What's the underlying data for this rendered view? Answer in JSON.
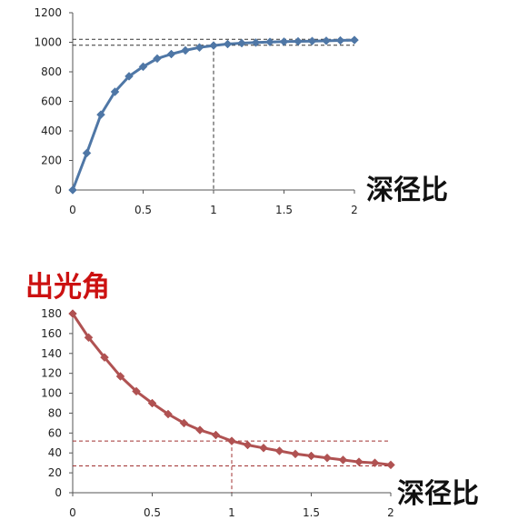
{
  "chart_data": [
    {
      "type": "line",
      "title": "",
      "xlabel": "深径比",
      "ylabel": "",
      "xlim": [
        0,
        2
      ],
      "ylim": [
        0,
        1200
      ],
      "xticks": [
        "0",
        "0.5",
        "1",
        "1.5",
        "2"
      ],
      "yticks": [
        "0",
        "200",
        "400",
        "600",
        "800",
        "1000",
        "1200"
      ],
      "grid": false,
      "color": "#4f77a6",
      "series": [
        {
          "x": [
            0,
            0.1,
            0.2,
            0.3,
            0.4,
            0.5,
            0.6,
            0.7,
            0.8,
            0.9,
            1.0,
            1.1,
            1.2,
            1.3,
            1.4,
            1.5,
            1.6,
            1.7,
            1.8,
            1.9,
            2.0
          ],
          "y": [
            0,
            250,
            510,
            665,
            770,
            835,
            890,
            920,
            945,
            965,
            978,
            988,
            994,
            998,
            1002,
            1004,
            1006,
            1008,
            1010,
            1012,
            1015
          ]
        }
      ],
      "reference_lines": [
        {
          "y": 1020
        },
        {
          "y": 980,
          "x": 1.0
        }
      ]
    },
    {
      "type": "line",
      "title": "出光角",
      "xlabel": "深径比",
      "ylabel": "",
      "xlim": [
        0,
        2
      ],
      "ylim": [
        0,
        180
      ],
      "xticks": [
        "0",
        "0.5",
        "1",
        "1.5",
        "2"
      ],
      "yticks": [
        "0",
        "20",
        "40",
        "60",
        "80",
        "100",
        "120",
        "140",
        "160",
        "180"
      ],
      "grid": false,
      "color": "#b05252",
      "title_color": "#cc1111",
      "series": [
        {
          "x": [
            0,
            0.1,
            0.2,
            0.3,
            0.4,
            0.5,
            0.6,
            0.7,
            0.8,
            0.9,
            1.0,
            1.1,
            1.2,
            1.3,
            1.4,
            1.5,
            1.6,
            1.7,
            1.8,
            1.9,
            2.0
          ],
          "y": [
            180,
            156,
            136,
            117,
            102,
            90,
            79,
            70,
            63,
            58,
            52,
            48,
            45,
            42,
            39,
            37,
            35,
            33,
            31,
            30,
            28
          ]
        }
      ],
      "reference_lines": [
        {
          "y": 52,
          "x": 1.0
        },
        {
          "y": 27
        }
      ]
    }
  ]
}
